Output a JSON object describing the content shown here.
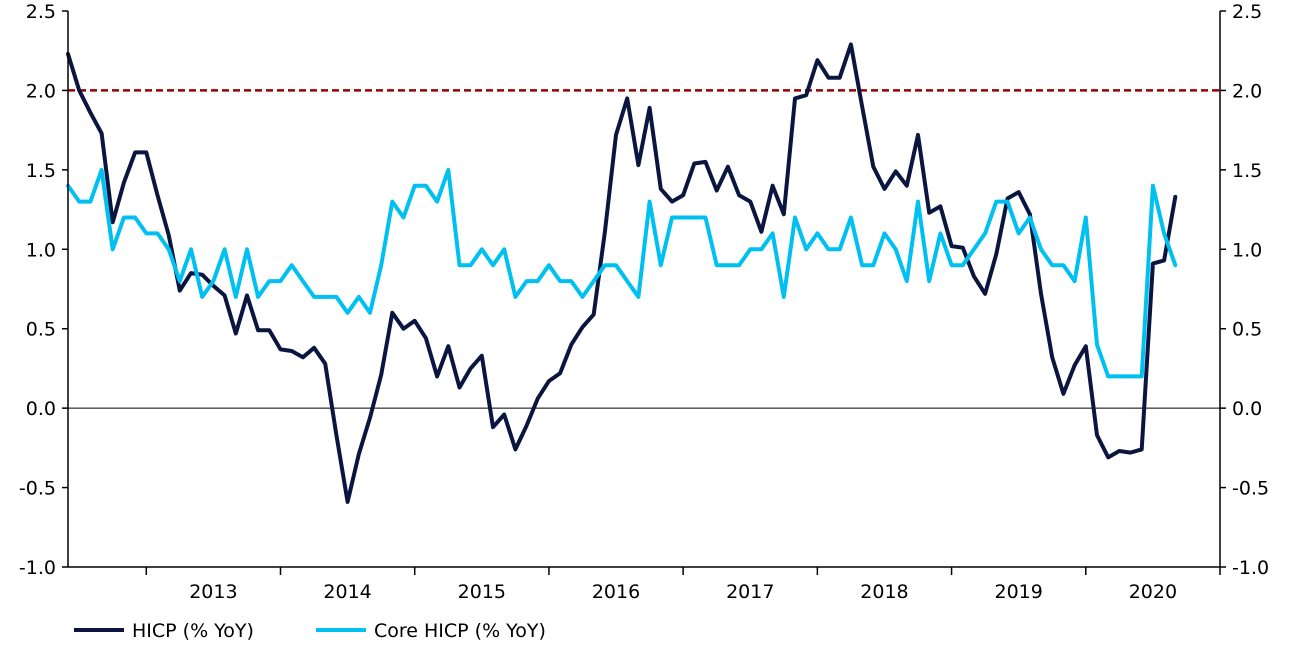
{
  "chart_data": {
    "type": "line",
    "x_start": "2012-06",
    "x_end": "2021-01",
    "x_ticks": [
      "2013",
      "2014",
      "2015",
      "2016",
      "2017",
      "2018",
      "2019",
      "2020"
    ],
    "ylim": [
      -1.0,
      2.5
    ],
    "y_ticks": [
      "-1.0",
      "-0.5",
      "0.0",
      "0.5",
      "1.0",
      "1.5",
      "2.0",
      "2.5"
    ],
    "secondary_y_axis": true,
    "reference_line": 2.0,
    "zero_line": true,
    "colors": {
      "hicp": "#0b1640",
      "core": "#00c0f2",
      "reference": "#9b0000"
    },
    "series": [
      {
        "name": "HICP (% YoY)",
        "color": "#0b1640",
        "values": [
          2.23,
          2.0,
          1.86,
          1.73,
          1.17,
          1.42,
          1.61,
          1.61,
          1.34,
          1.09,
          0.74,
          0.85,
          0.84,
          0.77,
          0.71,
          0.47,
          0.71,
          0.49,
          0.49,
          0.37,
          0.36,
          0.32,
          0.38,
          0.28,
          -0.17,
          -0.59,
          -0.29,
          -0.06,
          0.21,
          0.6,
          0.5,
          0.55,
          0.44,
          0.2,
          0.39,
          0.13,
          0.25,
          0.33,
          -0.12,
          -0.04,
          -0.26,
          -0.11,
          0.06,
          0.17,
          0.22,
          0.4,
          0.51,
          0.59,
          1.11,
          1.72,
          1.95,
          1.53,
          1.89,
          1.38,
          1.3,
          1.34,
          1.54,
          1.55,
          1.37,
          1.52,
          1.34,
          1.3,
          1.11,
          1.4,
          1.22,
          1.95,
          1.97,
          2.19,
          2.08,
          2.08,
          2.29,
          1.9,
          1.52,
          1.38,
          1.49,
          1.4,
          1.72,
          1.23,
          1.27,
          1.02,
          1.01,
          0.83,
          0.72,
          0.97,
          1.32,
          1.36,
          1.22,
          0.72,
          0.32,
          0.09,
          0.27,
          0.39,
          -0.17,
          -0.31,
          -0.27,
          -0.28,
          -0.26,
          0.91,
          0.93,
          1.33
        ]
      },
      {
        "name": "Core HICP (% YoY)",
        "color": "#00c0f2",
        "values": [
          1.4,
          1.3,
          1.3,
          1.5,
          1.0,
          1.2,
          1.2,
          1.1,
          1.1,
          1.0,
          0.8,
          1.0,
          0.7,
          0.8,
          1.0,
          0.7,
          1.0,
          0.7,
          0.8,
          0.8,
          0.9,
          0.8,
          0.7,
          0.7,
          0.7,
          0.6,
          0.7,
          0.6,
          0.9,
          1.3,
          1.2,
          1.4,
          1.4,
          1.3,
          1.5,
          0.9,
          0.9,
          1.0,
          0.9,
          1.0,
          0.7,
          0.8,
          0.8,
          0.9,
          0.8,
          0.8,
          0.7,
          0.8,
          0.9,
          0.9,
          0.8,
          0.7,
          1.3,
          0.9,
          1.2,
          1.2,
          1.2,
          1.2,
          0.9,
          0.9,
          0.9,
          1.0,
          1.0,
          1.1,
          0.7,
          1.2,
          1.0,
          1.1,
          1.0,
          1.0,
          1.2,
          0.9,
          0.9,
          1.1,
          1.0,
          0.8,
          1.3,
          0.8,
          1.1,
          0.9,
          0.9,
          1.0,
          1.1,
          1.3,
          1.3,
          1.1,
          1.2,
          1.0,
          0.9,
          0.9,
          0.8,
          1.2,
          0.4,
          0.2,
          0.2,
          0.2,
          0.2,
          1.4,
          1.1,
          0.9
        ]
      }
    ],
    "legend": {
      "placement": "bottom-left"
    }
  }
}
